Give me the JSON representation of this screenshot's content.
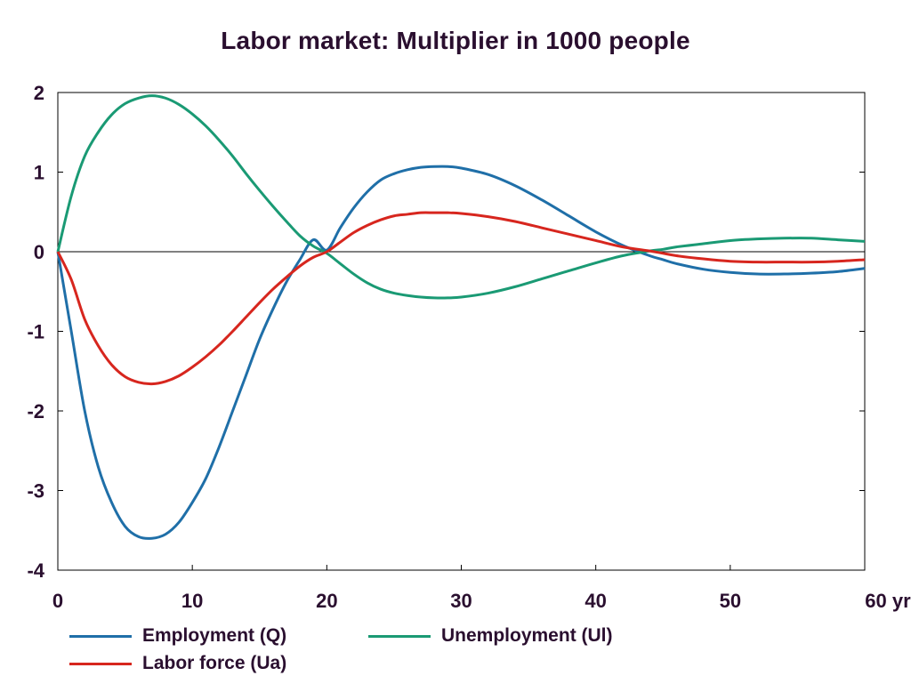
{
  "chart_data": {
    "type": "line",
    "title": "Labor market: Multiplier in 1000 people",
    "xlabel": "",
    "ylabel": "",
    "x_unit": "yr",
    "xlim": [
      0,
      60
    ],
    "ylim": [
      -4,
      2
    ],
    "x_ticks": [
      0,
      10,
      20,
      30,
      40,
      50,
      60
    ],
    "x_tick_labels": [
      "0",
      "10",
      "20",
      "30",
      "40",
      "50",
      "60 yr"
    ],
    "y_ticks": [
      2,
      1,
      0,
      -1,
      -2,
      -3,
      -4
    ],
    "y_tick_labels": [
      "2",
      "1",
      "0",
      "-1",
      "-2",
      "-3",
      "-4"
    ],
    "grid": false,
    "legend_position": "bottom",
    "x": [
      0,
      1,
      2,
      3,
      4,
      5,
      6,
      7,
      8,
      9,
      10,
      11,
      12,
      13,
      14,
      15,
      16,
      17,
      18,
      19,
      20,
      21,
      22,
      23,
      24,
      25,
      26,
      27,
      28,
      29,
      30,
      32,
      34,
      36,
      38,
      40,
      42,
      44,
      45,
      46,
      48,
      50,
      52,
      54,
      56,
      58,
      60
    ],
    "series": [
      {
        "name": "Employment (Q)",
        "color": "#1f6fa8",
        "values": [
          0,
          -1.0,
          -2.0,
          -2.7,
          -3.15,
          -3.45,
          -3.58,
          -3.6,
          -3.55,
          -3.4,
          -3.15,
          -2.85,
          -2.45,
          -2.0,
          -1.55,
          -1.1,
          -0.72,
          -0.38,
          -0.1,
          0.15,
          0.02,
          0.3,
          0.55,
          0.75,
          0.9,
          0.98,
          1.03,
          1.06,
          1.07,
          1.07,
          1.05,
          0.97,
          0.83,
          0.65,
          0.45,
          0.25,
          0.08,
          -0.05,
          -0.1,
          -0.15,
          -0.22,
          -0.26,
          -0.28,
          -0.28,
          -0.27,
          -0.25,
          -0.21
        ]
      },
      {
        "name": "Unemployment (Ul)",
        "color": "#1a9a74",
        "values": [
          0,
          0.7,
          1.2,
          1.5,
          1.72,
          1.86,
          1.93,
          1.96,
          1.93,
          1.85,
          1.73,
          1.58,
          1.4,
          1.2,
          0.98,
          0.77,
          0.57,
          0.38,
          0.2,
          0.07,
          -0.02,
          -0.15,
          -0.28,
          -0.39,
          -0.47,
          -0.52,
          -0.55,
          -0.57,
          -0.58,
          -0.58,
          -0.57,
          -0.52,
          -0.44,
          -0.34,
          -0.24,
          -0.14,
          -0.05,
          0.01,
          0.03,
          0.06,
          0.1,
          0.14,
          0.16,
          0.17,
          0.17,
          0.15,
          0.13
        ]
      },
      {
        "name": "Labor force (Ua)",
        "color": "#d7261e",
        "values": [
          0,
          -0.35,
          -0.85,
          -1.18,
          -1.42,
          -1.57,
          -1.64,
          -1.66,
          -1.63,
          -1.56,
          -1.45,
          -1.32,
          -1.17,
          -1.0,
          -0.82,
          -0.64,
          -0.47,
          -0.32,
          -0.18,
          -0.07,
          0.0,
          0.12,
          0.24,
          0.33,
          0.4,
          0.45,
          0.47,
          0.49,
          0.49,
          0.49,
          0.48,
          0.44,
          0.38,
          0.3,
          0.22,
          0.14,
          0.06,
          0.01,
          -0.02,
          -0.05,
          -0.09,
          -0.12,
          -0.13,
          -0.13,
          -0.13,
          -0.12,
          -0.1
        ]
      }
    ]
  }
}
